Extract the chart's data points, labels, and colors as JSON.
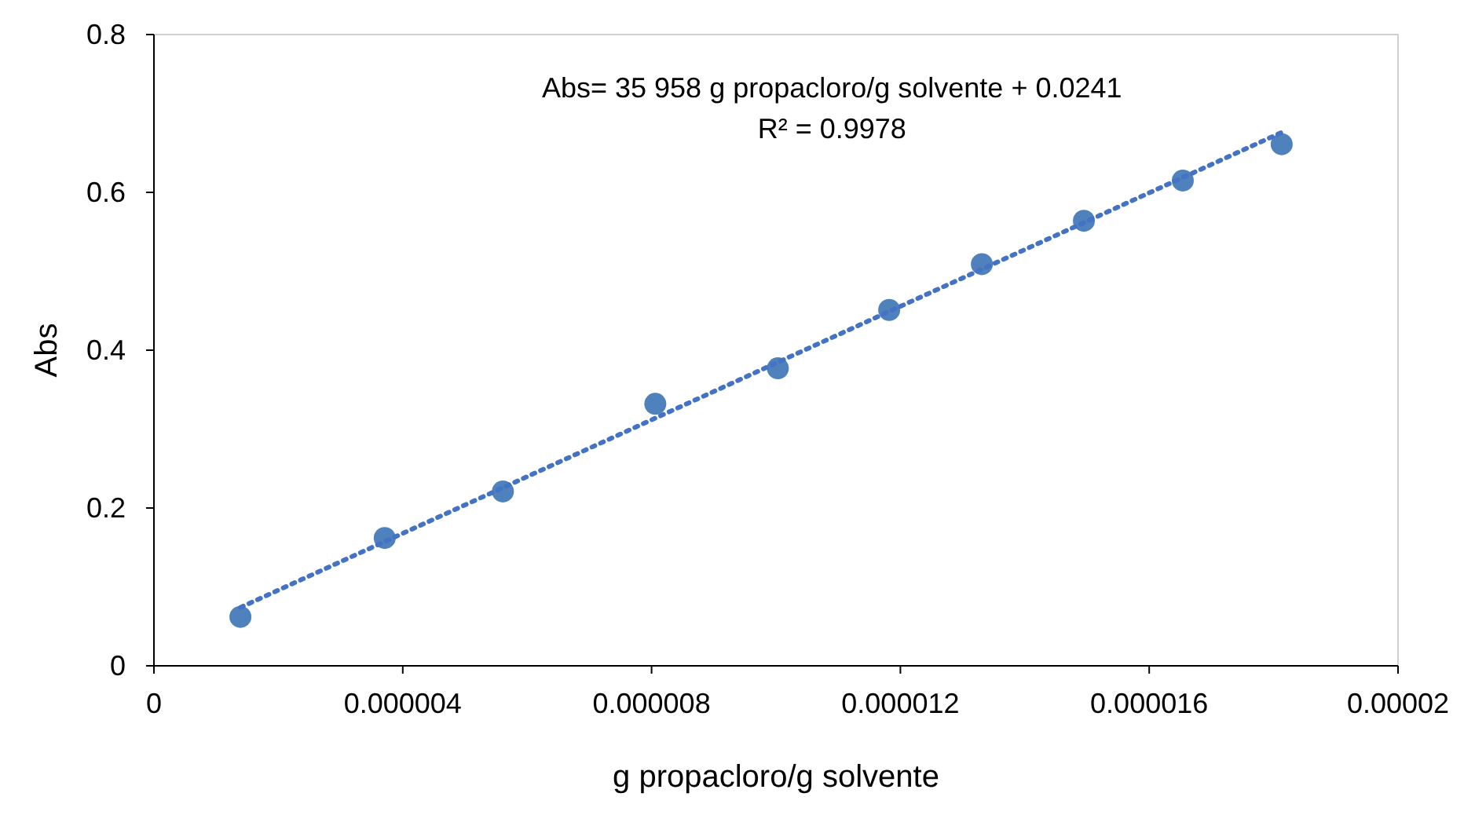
{
  "chart_data": {
    "type": "scatter",
    "xlabel": "g propacloro/g solvente",
    "ylabel": "Abs",
    "xlim": [
      0,
      2e-05
    ],
    "ylim": [
      0,
      0.8
    ],
    "xticks": [
      0,
      {
        "value": 4e-06,
        "label": "0.000004"
      },
      {
        "value": 8e-06,
        "label": "0.000008"
      },
      {
        "value": 1.2e-05,
        "label": "0.000012"
      },
      {
        "value": 1.6e-05,
        "label": "0.000016"
      },
      {
        "value": 2e-05,
        "label": "0.00002"
      }
    ],
    "yticks": [
      0,
      0.2,
      0.4,
      0.6,
      0.8
    ],
    "grid": false,
    "annotations": [
      "Abs= 35 958 g propacloro/g solvente  + 0.0241",
      "R² = 0.9978"
    ],
    "series": [
      {
        "color": "#4f81bd",
        "marker": "circle",
        "x": [
          1.39e-06,
          3.71e-06,
          5.61e-06,
          8.06e-06,
          1.003e-05,
          1.182e-05,
          1.331e-05,
          1.495e-05,
          1.654e-05,
          1.813e-05
        ],
        "values": [
          0.062,
          0.162,
          0.221,
          0.332,
          0.377,
          0.451,
          0.509,
          0.564,
          0.615,
          0.661
        ]
      },
      {
        "type": "line",
        "color": "#4472c4",
        "marker": "none",
        "line_style": "dotted",
        "x": [
          1.39e-06,
          1.813e-05
        ],
        "values": [
          0.074,
          0.676
        ]
      }
    ]
  }
}
